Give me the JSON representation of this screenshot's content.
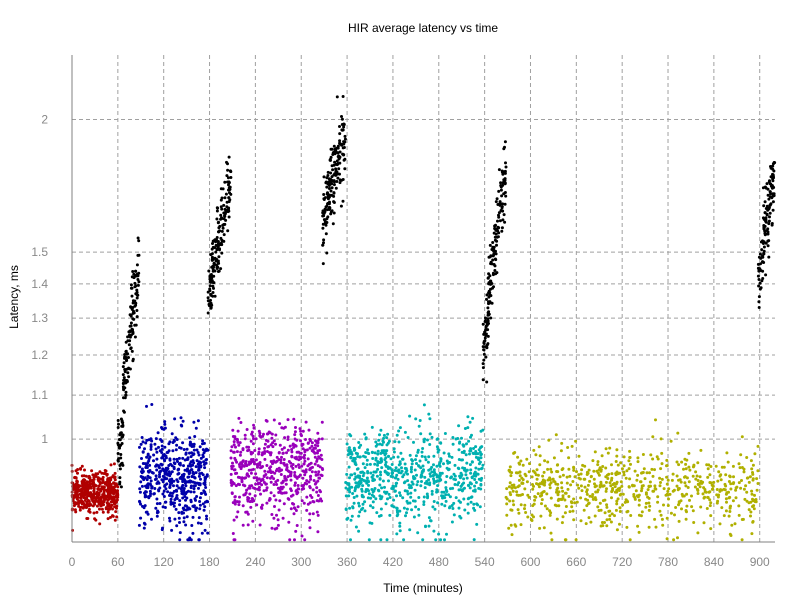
{
  "chart_data": {
    "type": "scatter",
    "title": "HIR average latency vs time",
    "xlabel": "Time (minutes)",
    "ylabel": "Latency, ms",
    "xlim": [
      0,
      920
    ],
    "ylim": [
      0.8,
      2.3
    ],
    "y_scale": "log",
    "grid": true,
    "x_ticks": [
      "0",
      "60",
      "120",
      "180",
      "240",
      "300",
      "360",
      "420",
      "480",
      "540",
      "600",
      "660",
      "720",
      "780",
      "840",
      "900"
    ],
    "y_ticks": [
      "1",
      "1.1",
      "1.2",
      "1.3",
      "1.4",
      "1.5",
      "2"
    ],
    "colors": {
      "red": "#b00000",
      "blue": "#0000aa",
      "purple": "#9900bb",
      "teal": "#00b0b0",
      "olive": "#b0b000",
      "black": "#000000"
    },
    "series": [
      {
        "color": "red",
        "x_range": [
          0,
          60
        ],
        "y_mean": 0.89,
        "y_spread": 0.02,
        "count": 480
      },
      {
        "color": "blue",
        "x_range": [
          88,
          178
        ],
        "y_mean": 0.92,
        "y_spread": 0.05,
        "count": 520
      },
      {
        "color": "purple",
        "x_range": [
          208,
          328
        ],
        "y_mean": 0.93,
        "y_spread": 0.05,
        "count": 560
      },
      {
        "color": "teal",
        "x_range": [
          358,
          538
        ],
        "y_mean": 0.92,
        "y_spread": 0.05,
        "count": 700
      },
      {
        "color": "olive",
        "x_range": [
          568,
          898
        ],
        "y_mean": 0.9,
        "y_spread": 0.04,
        "count": 720
      },
      {
        "color": "black",
        "segments": [
          {
            "x_range": [
              60,
              67
            ],
            "y_start": 0.98,
            "y_end": 1.0
          },
          {
            "x_range": [
              67,
              88
            ],
            "y_start": 1.1,
            "y_end": 1.45
          },
          {
            "x_range": [
              178,
              208
            ],
            "y_start": 1.35,
            "y_end": 1.75
          },
          {
            "x_range": [
              328,
              358
            ],
            "y_start": 1.6,
            "y_end": 1.95
          },
          {
            "x_range": [
              538,
              568
            ],
            "y_start": 1.2,
            "y_end": 1.8
          },
          {
            "x_range": [
              898,
              920
            ],
            "y_start": 1.4,
            "y_end": 1.8
          }
        ]
      }
    ]
  }
}
